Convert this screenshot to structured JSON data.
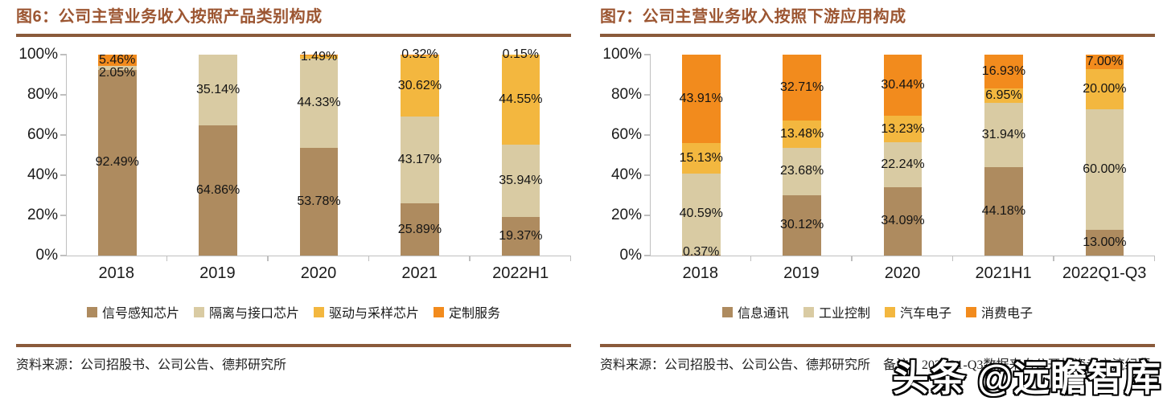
{
  "watermark": {
    "text": "头条 @远瞻智库"
  },
  "colors": {
    "title": "#9C5632",
    "rule": "#8A5A3A",
    "axis": "#BFBFBF",
    "brown": "#AE8B5F",
    "tan": "#D9CBA3",
    "gold": "#F3B73F",
    "orange": "#F28B1D"
  },
  "panels": [
    {
      "source": "资料来源：公司招股书、公司公告、德邦研究所"
    },
    {
      "source": "资料来源：公司招股书、公司公告、德邦研究所　备注：2022Q1-Q3数据来自公开投资者交流纪要"
    }
  ],
  "chart_data": [
    {
      "type": "bar",
      "stacked": true,
      "percent": true,
      "title": "图6：公司主营业务收入按照产品类别构成",
      "categories": [
        "2018",
        "2019",
        "2020",
        "2021",
        "2022H1"
      ],
      "series": [
        {
          "name": "信号感知芯片",
          "color": "#AE8B5F",
          "values": [
            92.49,
            64.86,
            53.78,
            25.89,
            19.37
          ],
          "labels": [
            "92.49%",
            "64.86%",
            "53.78%",
            "25.89%",
            "19.37%"
          ]
        },
        {
          "name": "隔离与接口芯片",
          "color": "#D9CBA3",
          "values": [
            2.05,
            35.14,
            44.33,
            43.17,
            35.94
          ],
          "labels": [
            "2.05%",
            "35.14%",
            "44.33%",
            "43.17%",
            "35.94%"
          ]
        },
        {
          "name": "驱动与采样芯片",
          "color": "#F3B73F",
          "values": [
            0,
            0,
            1.49,
            30.62,
            44.55
          ],
          "labels": [
            "",
            "",
            "1.49%",
            "30.62%",
            "44.55%"
          ]
        },
        {
          "name": "定制服务",
          "color": "#F28B1D",
          "values": [
            5.46,
            0,
            0.4,
            0.32,
            0.15
          ],
          "labels": [
            "5.46%",
            "",
            "",
            "0.32%",
            "0.15%"
          ]
        }
      ],
      "y_ticks": [
        "0%",
        "20%",
        "40%",
        "60%",
        "80%",
        "100%"
      ],
      "ylim": [
        0,
        100
      ],
      "grid": false,
      "legend_position": "bottom"
    },
    {
      "type": "bar",
      "stacked": true,
      "percent": true,
      "title": "图7：公司主营业务收入按照下游应用构成",
      "categories": [
        "2018",
        "2019",
        "2020",
        "2021H1",
        "2022Q1-Q3"
      ],
      "series": [
        {
          "name": "信息通讯",
          "color": "#AE8B5F",
          "values": [
            0.37,
            30.12,
            34.09,
            44.18,
            13.0
          ],
          "labels": [
            "0.37%",
            "30.12%",
            "34.09%",
            "44.18%",
            "13.00%"
          ]
        },
        {
          "name": "工业控制",
          "color": "#D9CBA3",
          "values": [
            40.59,
            23.68,
            22.24,
            31.94,
            60.0
          ],
          "labels": [
            "40.59%",
            "23.68%",
            "22.24%",
            "31.94%",
            "60.00%"
          ]
        },
        {
          "name": "汽车电子",
          "color": "#F3B73F",
          "values": [
            15.13,
            13.48,
            13.23,
            6.95,
            20.0
          ],
          "labels": [
            "15.13%",
            "13.48%",
            "13.23%",
            "6.95%",
            "20.00%"
          ]
        },
        {
          "name": "消费电子",
          "color": "#F28B1D",
          "values": [
            43.91,
            32.71,
            30.44,
            16.93,
            7.0
          ],
          "labels": [
            "43.91%",
            "32.71%",
            "30.44%",
            "16.93%",
            "7.00%"
          ]
        }
      ],
      "y_ticks": [
        "0%",
        "20%",
        "40%",
        "60%",
        "80%",
        "100%"
      ],
      "ylim": [
        0,
        100
      ],
      "grid": false,
      "legend_position": "bottom"
    }
  ]
}
